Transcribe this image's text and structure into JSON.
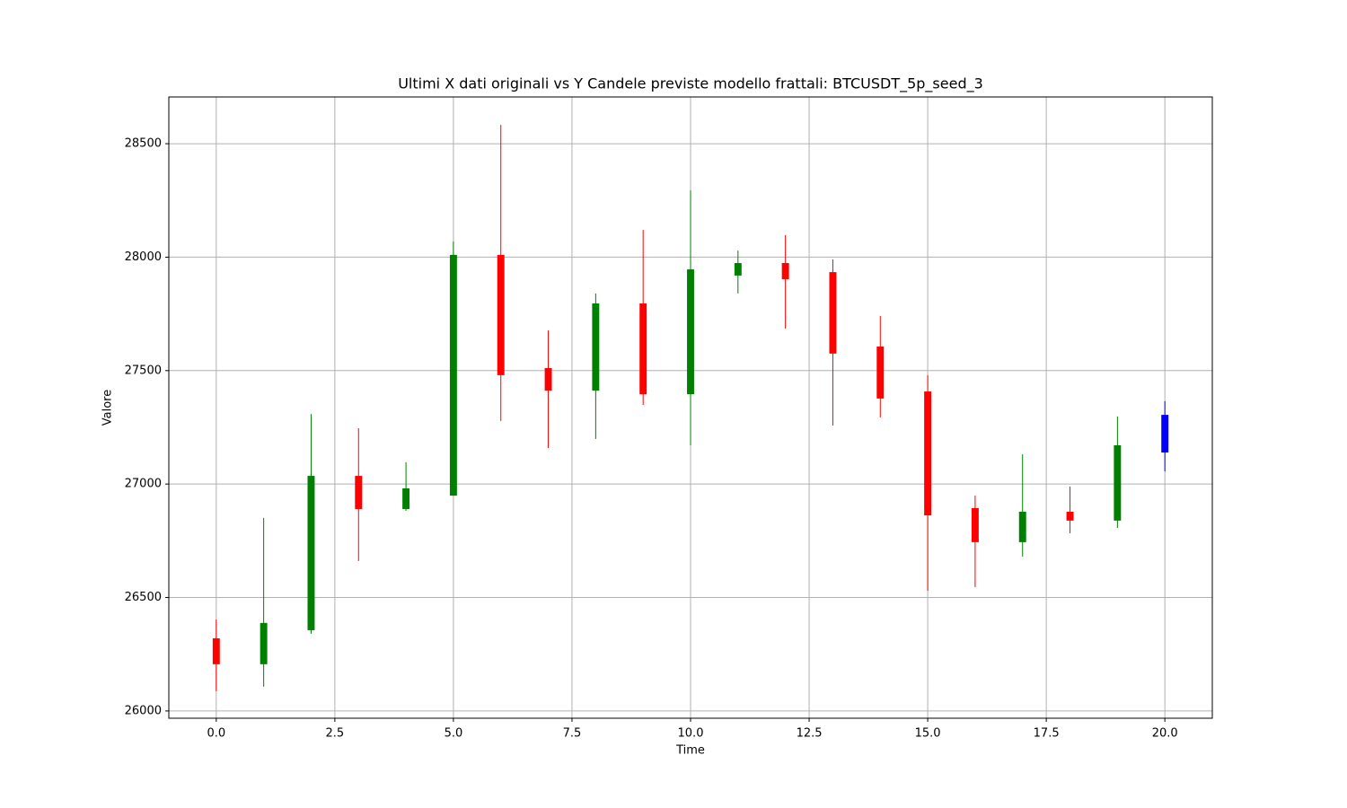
{
  "chart_data": {
    "type": "candlestick",
    "title": "Ultimi X dati originali vs Y Candele previste modello frattali: BTCUSDT_5p_seed_3",
    "x_label": "Time",
    "y_label": "Valore",
    "x": [
      0,
      1,
      2,
      3,
      4,
      5,
      6,
      7,
      8,
      9,
      10,
      11,
      12,
      13,
      14,
      15,
      16,
      17,
      18,
      19,
      20
    ],
    "open": [
      26320,
      26206,
      26356,
      27036,
      26890,
      26949,
      28010,
      27511,
      27412,
      27796,
      27396,
      27919,
      27974,
      27934,
      27606,
      27408,
      26894,
      26744,
      26878,
      26839,
      27139
    ],
    "high": [
      26403,
      26851,
      27309,
      27246,
      27096,
      28069,
      28583,
      27677,
      27840,
      28120,
      28294,
      28029,
      28097,
      27990,
      27741,
      27480,
      26949,
      27131,
      26989,
      27298,
      27365
    ],
    "low": [
      26087,
      26107,
      26340,
      26661,
      26882,
      26949,
      27278,
      27159,
      27199,
      27349,
      27171,
      27840,
      27685,
      27258,
      27294,
      26530,
      26546,
      26680,
      26783,
      26807,
      27056
    ],
    "close": [
      26206,
      26388,
      27036,
      26890,
      26981,
      28010,
      27480,
      27412,
      27796,
      27396,
      27946,
      27974,
      27903,
      27575,
      27377,
      26862,
      26744,
      26878,
      26839,
      27171,
      27305
    ],
    "colors": [
      "red",
      "green",
      "green",
      "red",
      "green",
      "green",
      "red",
      "red",
      "green",
      "red",
      "green",
      "green",
      "red",
      "red",
      "red",
      "red",
      "red",
      "green",
      "red",
      "green",
      "blue"
    ],
    "xlim": [
      -1,
      21
    ],
    "ylim": [
      25968,
      28706
    ],
    "xticks": [
      {
        "value": 0,
        "label": "0.0"
      },
      {
        "value": 2.5,
        "label": "2.5"
      },
      {
        "value": 5,
        "label": "5.0"
      },
      {
        "value": 7.5,
        "label": "7.5"
      },
      {
        "value": 10,
        "label": "10.0"
      },
      {
        "value": 12.5,
        "label": "12.5"
      },
      {
        "value": 15,
        "label": "15.0"
      },
      {
        "value": 17.5,
        "label": "17.5"
      },
      {
        "value": 20,
        "label": "20.0"
      }
    ],
    "yticks": [
      26000,
      26500,
      27000,
      27500,
      28000,
      28500
    ],
    "grid": true
  }
}
